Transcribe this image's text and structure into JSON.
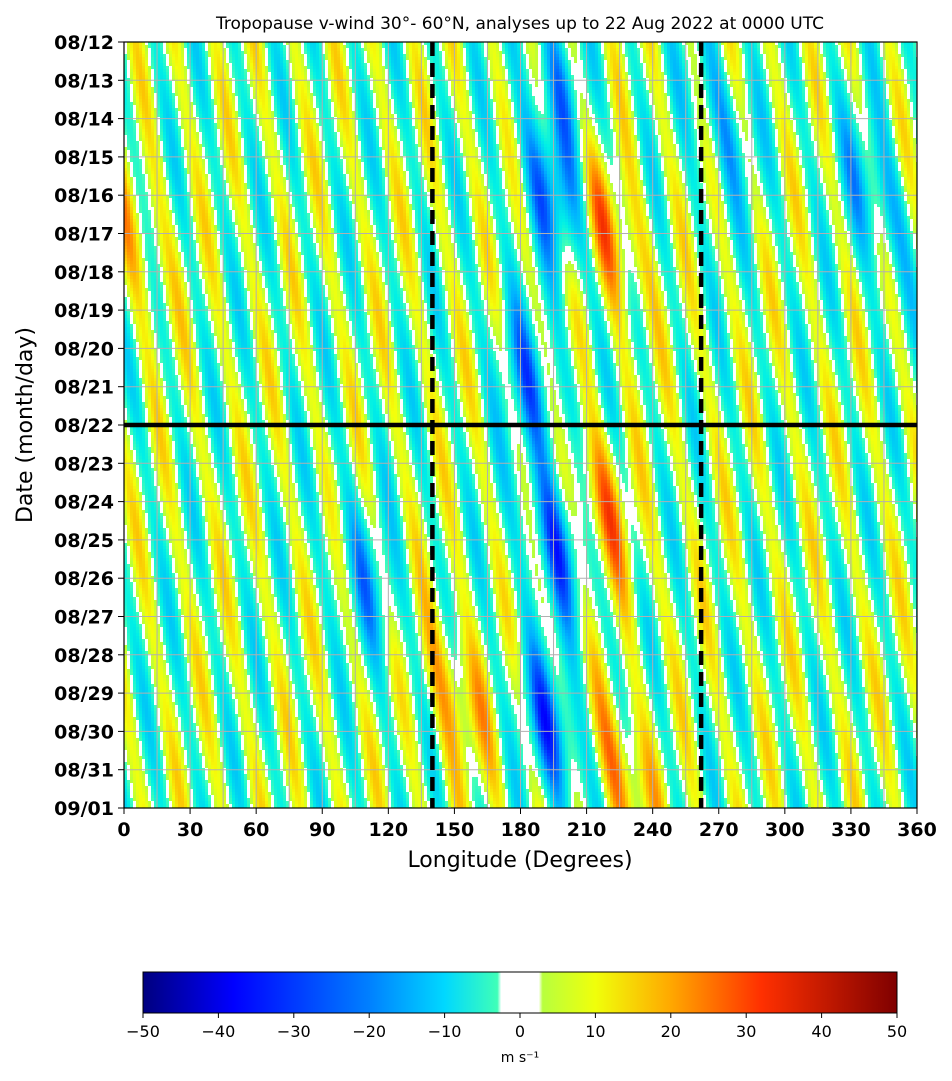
{
  "chart_data": {
    "type": "heatmap",
    "title": "Tropopause v-wind 30°- 60°N, analyses up to 22 Aug 2022 at 0000 UTC",
    "xlabel": "Longitude (Degrees)",
    "ylabel": "Date (month/day)",
    "x_ticks": [
      0,
      30,
      60,
      90,
      120,
      150,
      180,
      210,
      240,
      270,
      300,
      330,
      360
    ],
    "y_ticks": [
      "08/12",
      "08/13",
      "08/14",
      "08/15",
      "08/16",
      "08/17",
      "08/18",
      "08/19",
      "08/20",
      "08/21",
      "08/22",
      "08/23",
      "08/24",
      "08/25",
      "08/26",
      "08/27",
      "08/28",
      "08/29",
      "08/30",
      "08/31",
      "09/01"
    ],
    "xlim": [
      0,
      360
    ],
    "ylim": [
      "09/01",
      "08/12"
    ],
    "grid": true,
    "analysis_date_line": "08/22",
    "marker_longitudes": [
      140,
      262
    ],
    "colorbar": {
      "label": "m s⁻¹",
      "ticks": [
        "−50",
        "−40",
        "−30",
        "−20",
        "−10",
        "0",
        "10",
        "20",
        "30",
        "40",
        "50"
      ],
      "levels": [
        -50,
        50
      ],
      "blank_band": [
        -2.5,
        2.5
      ]
    },
    "features": [
      {
        "kind": "negative",
        "lon": 195,
        "date": "08/13",
        "value": -25
      },
      {
        "kind": "negative",
        "lon": 195,
        "date": "08/16",
        "value": -40
      },
      {
        "kind": "positive",
        "lon": 220,
        "date": "08/17",
        "value": 35
      },
      {
        "kind": "negative",
        "lon": 185,
        "date": "08/21",
        "value": -35
      },
      {
        "kind": "positive",
        "lon": 215,
        "date": "08/24",
        "value": 35
      },
      {
        "kind": "negative",
        "lon": 195,
        "date": "08/25",
        "value": -40
      },
      {
        "kind": "positive",
        "lon": 150,
        "date": "08/29",
        "value": 30
      },
      {
        "kind": "negative",
        "lon": 195,
        "date": "08/30",
        "value": -45
      },
      {
        "kind": "positive",
        "lon": 225,
        "date": "08/31",
        "value": 35
      },
      {
        "kind": "negative",
        "lon": 340,
        "date": "08/16",
        "value": -30
      },
      {
        "kind": "negative",
        "lon": 270,
        "date": "08/14",
        "value": -25
      },
      {
        "kind": "negative",
        "lon": 110,
        "date": "08/26",
        "value": -25
      },
      {
        "kind": "positive",
        "lon": 5,
        "date": "08/17",
        "value": 20
      }
    ]
  }
}
